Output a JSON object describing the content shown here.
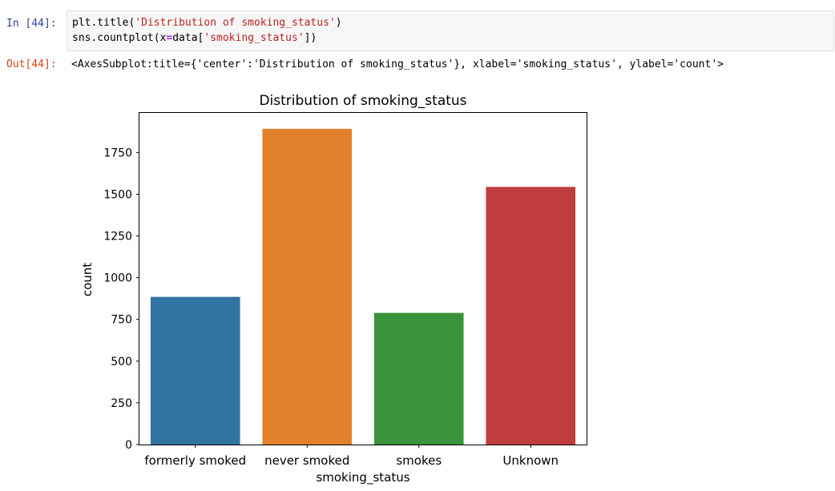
{
  "cell": {
    "in_prompt": "In [44]:",
    "out_prompt": "Out[44]:",
    "code_lines": [
      {
        "pre": "plt.title(",
        "str": "'Distribution of smoking_status'",
        "post": ")"
      },
      {
        "pre": "sns.countplot(x",
        "op": "=",
        "mid": "data[",
        "str": "'smoking_status'",
        "post": "])"
      }
    ],
    "output_text": "<AxesSubplot:title={'center':'Distribution of smoking_status'}, xlabel='smoking_status', ylabel='count'>"
  },
  "chart_data": {
    "type": "bar",
    "title": "Distribution of smoking_status",
    "xlabel": "smoking_status",
    "ylabel": "count",
    "categories": [
      "formerly smoked",
      "never smoked",
      "smokes",
      "Unknown"
    ],
    "values": [
      885,
      1892,
      789,
      1544
    ],
    "colors": [
      "#3274a1",
      "#e1812c",
      "#3a923a",
      "#c03d3e"
    ],
    "yticks": [
      0,
      250,
      500,
      750,
      1000,
      1250,
      1500,
      1750
    ],
    "ylim": [
      0,
      1987
    ],
    "grid": false
  }
}
